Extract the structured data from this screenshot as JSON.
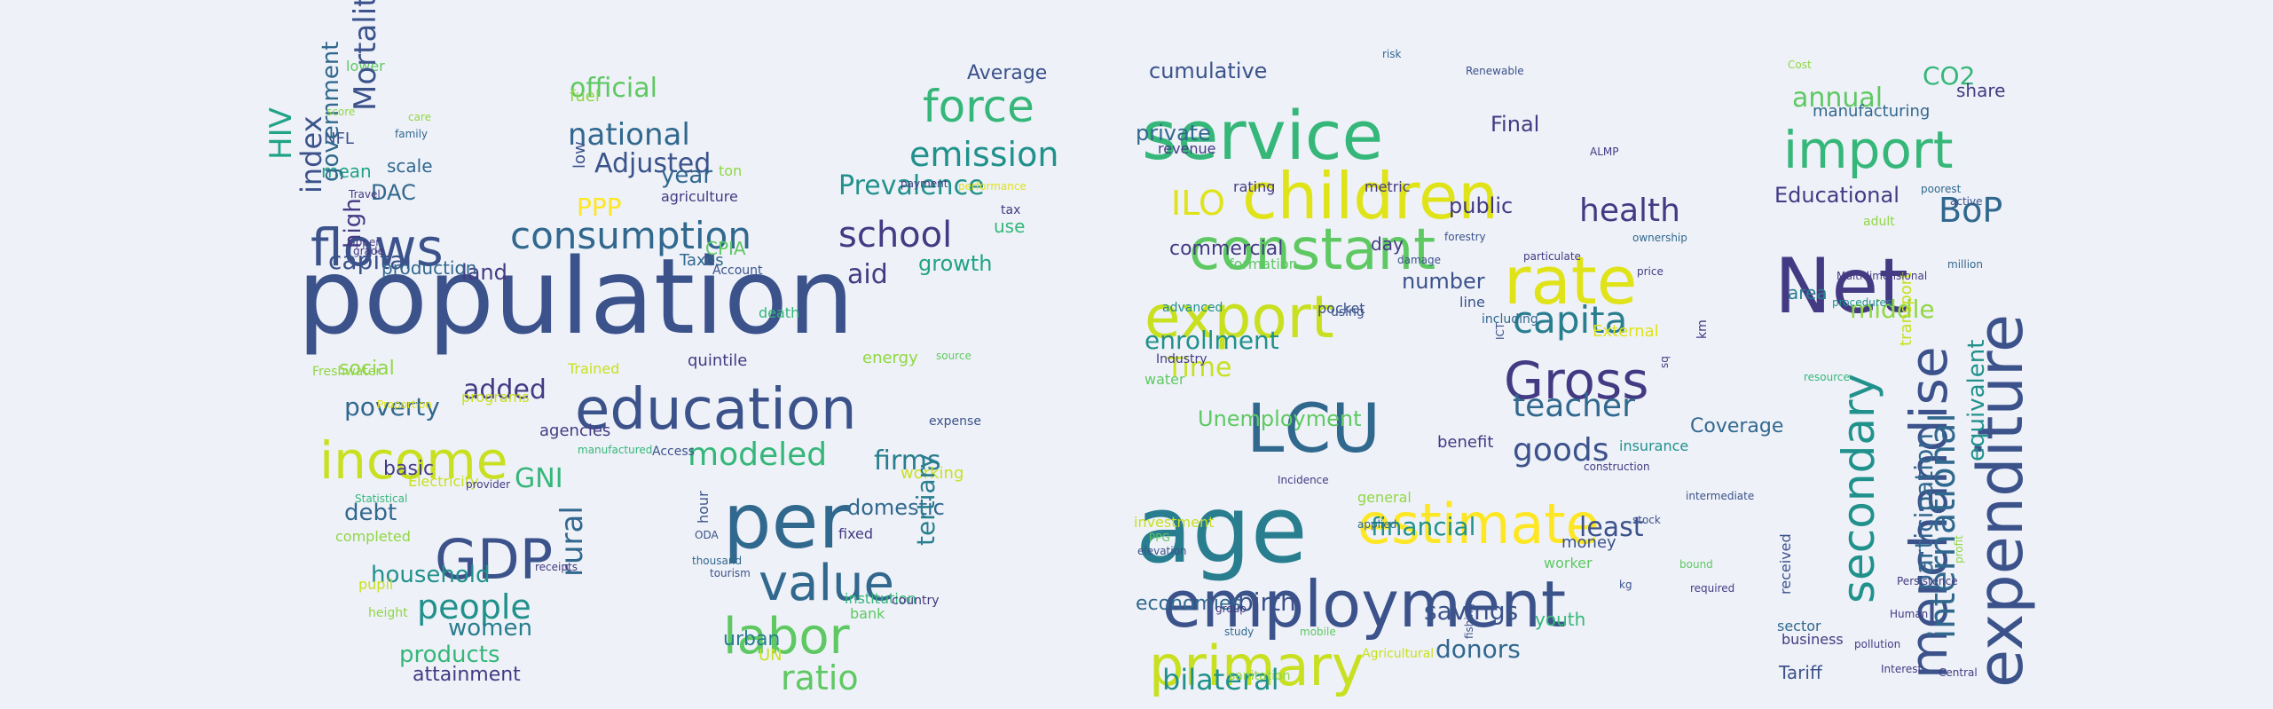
{
  "palette": [
    "#443a83",
    "#3b528b",
    "#31688e",
    "#287d8e",
    "#21918c",
    "#20a386",
    "#35b779",
    "#5ec962",
    "#90d743",
    "#c8e020",
    "#dfe318",
    "#fde725"
  ],
  "words": [
    {
      "t": "population",
      "c": "#3b528b"
    },
    {
      "t": "education",
      "c": "#3b528b"
    },
    {
      "t": "income",
      "c": "#c8e020"
    },
    {
      "t": "GDP",
      "c": "#3b528b"
    },
    {
      "t": "per",
      "c": "#31688e"
    },
    {
      "t": "flows",
      "c": "#3b528b"
    },
    {
      "t": "consumption",
      "c": "#31688e"
    },
    {
      "t": "force",
      "c": "#35b779"
    },
    {
      "t": "value",
      "c": "#31688e"
    },
    {
      "t": "labor",
      "c": "#5ec962"
    },
    {
      "t": "school",
      "c": "#443a83"
    },
    {
      "t": "emission",
      "c": "#21918c"
    },
    {
      "t": "national",
      "c": "#31688e"
    },
    {
      "t": "official",
      "c": "#5ec962"
    },
    {
      "t": "Prevalence",
      "c": "#21918c"
    },
    {
      "t": "modeled",
      "c": "#35b779"
    },
    {
      "t": "people",
      "c": "#21918c"
    },
    {
      "t": "Adjusted",
      "c": "#3b528b"
    },
    {
      "t": "capital",
      "c": "#3b528b"
    },
    {
      "t": "GNI",
      "c": "#35b779"
    },
    {
      "t": "firms",
      "c": "#287d8e"
    },
    {
      "t": "ratio",
      "c": "#5ec962"
    },
    {
      "t": "added",
      "c": "#443a83"
    },
    {
      "t": "aid",
      "c": "#443a83"
    },
    {
      "t": "poverty",
      "c": "#31688e"
    },
    {
      "t": "debt",
      "c": "#31688e"
    },
    {
      "t": "household",
      "c": "#21918c"
    },
    {
      "t": "women",
      "c": "#287d8e"
    },
    {
      "t": "products",
      "c": "#35b779"
    },
    {
      "t": "domestic",
      "c": "#31688e"
    },
    {
      "t": "growth",
      "c": "#20a386"
    },
    {
      "t": "year",
      "c": "#31688e"
    },
    {
      "t": "land",
      "c": "#443a83"
    },
    {
      "t": "PPP",
      "c": "#fde725"
    },
    {
      "t": "Average",
      "c": "#3b528b"
    },
    {
      "t": "social",
      "c": "#90d743"
    },
    {
      "t": "attainment",
      "c": "#443a83"
    },
    {
      "t": "urban",
      "c": "#287d8e"
    },
    {
      "t": "scale",
      "c": "#31688e"
    },
    {
      "t": "DAC",
      "c": "#31688e"
    },
    {
      "t": "basic",
      "c": "#443a83"
    },
    {
      "t": "mean",
      "c": "#20a386"
    },
    {
      "t": "production",
      "c": "#31688e"
    },
    {
      "t": "agencies",
      "c": "#443a83"
    },
    {
      "t": "quintile",
      "c": "#443a83"
    },
    {
      "t": "fixed",
      "c": "#443a83"
    },
    {
      "t": "bank",
      "c": "#5ec962"
    },
    {
      "t": "institution",
      "c": "#35b779"
    },
    {
      "t": "Taxes",
      "c": "#31688e"
    },
    {
      "t": "energy",
      "c": "#90d743"
    },
    {
      "t": "working",
      "c": "#c8e020"
    },
    {
      "t": "lower",
      "c": "#5ec962"
    },
    {
      "t": "fuel",
      "c": "#90d743"
    },
    {
      "t": "NFL",
      "c": "#3b528b"
    },
    {
      "t": "agriculture",
      "c": "#443a83"
    },
    {
      "t": "CPIA",
      "c": "#5ec962"
    },
    {
      "t": "death",
      "c": "#35b779"
    },
    {
      "t": "use",
      "c": "#35b779"
    },
    {
      "t": "ton",
      "c": "#90d743"
    },
    {
      "t": "tax",
      "c": "#443a83"
    },
    {
      "t": "expense",
      "c": "#3b528b"
    },
    {
      "t": "Electricity",
      "c": "#c8e020"
    },
    {
      "t": "completed",
      "c": "#90d743"
    },
    {
      "t": "pupil",
      "c": "#c8e020"
    },
    {
      "t": "height",
      "c": "#90d743"
    },
    {
      "t": "Trained",
      "c": "#c8e020"
    },
    {
      "t": "programs",
      "c": "#c8e020"
    },
    {
      "t": "Freshwater",
      "c": "#90d743"
    },
    {
      "t": "Account",
      "c": "#3b528b"
    },
    {
      "t": "UN",
      "c": "#c8e020"
    },
    {
      "t": "service",
      "c": "#35b779"
    },
    {
      "t": "children",
      "c": "#dfe318"
    },
    {
      "t": "constant",
      "c": "#5ec962"
    },
    {
      "t": "export",
      "c": "#c8e020"
    },
    {
      "t": "age",
      "c": "#287d8e"
    },
    {
      "t": "LCU",
      "c": "#31688e"
    },
    {
      "t": "rate",
      "c": "#dfe318"
    },
    {
      "t": "Gross",
      "c": "#443a83"
    },
    {
      "t": "employment",
      "c": "#3b528b"
    },
    {
      "t": "estimate",
      "c": "#fde725"
    },
    {
      "t": "primary",
      "c": "#c8e020"
    },
    {
      "t": "capita",
      "c": "#287d8e"
    },
    {
      "t": "teacher",
      "c": "#31688e"
    },
    {
      "t": "health",
      "c": "#443a83"
    },
    {
      "t": "enrollment",
      "c": "#21918c"
    },
    {
      "t": "goods",
      "c": "#3b528b"
    },
    {
      "t": "financial",
      "c": "#21918c"
    },
    {
      "t": "savings",
      "c": "#3b528b"
    },
    {
      "t": "least",
      "c": "#3b528b"
    },
    {
      "t": "ILO",
      "c": "#dfe318"
    },
    {
      "t": "Unemployment",
      "c": "#5ec962"
    },
    {
      "t": "Time",
      "c": "#c8e020"
    },
    {
      "t": "birth",
      "c": "#3b528b"
    },
    {
      "t": "donors",
      "c": "#31688e"
    },
    {
      "t": "bilateral",
      "c": "#21918c"
    },
    {
      "t": "economies",
      "c": "#31688e"
    },
    {
      "t": "cumulative",
      "c": "#3b528b"
    },
    {
      "t": "private",
      "c": "#31688e"
    },
    {
      "t": "commercial",
      "c": "#443a83"
    },
    {
      "t": "number",
      "c": "#3b528b"
    },
    {
      "t": "public",
      "c": "#443a83"
    },
    {
      "t": "Final",
      "c": "#443a83"
    },
    {
      "t": "Coverage",
      "c": "#31688e"
    },
    {
      "t": "External",
      "c": "#dfe318"
    },
    {
      "t": "day",
      "c": "#443a83"
    },
    {
      "t": "pocket",
      "c": "#3b528b"
    },
    {
      "t": "formation",
      "c": "#5ec962"
    },
    {
      "t": "benefit",
      "c": "#443a83"
    },
    {
      "t": "youth",
      "c": "#35b779"
    },
    {
      "t": "money",
      "c": "#3b528b"
    },
    {
      "t": "worker",
      "c": "#5ec962"
    },
    {
      "t": "insurance",
      "c": "#21918c"
    },
    {
      "t": "investment",
      "c": "#c8e020"
    },
    {
      "t": "general",
      "c": "#90d743"
    },
    {
      "t": "rating",
      "c": "#443a83"
    },
    {
      "t": "metric",
      "c": "#443a83"
    },
    {
      "t": "revenue",
      "c": "#443a83"
    },
    {
      "t": "advanced",
      "c": "#21918c"
    },
    {
      "t": "water",
      "c": "#5ec962"
    },
    {
      "t": "Industry",
      "c": "#443a83"
    },
    {
      "t": "Agricultural",
      "c": "#c8e020"
    },
    {
      "t": "sanitation",
      "c": "#90d743"
    },
    {
      "t": "line",
      "c": "#3b528b"
    },
    {
      "t": "using",
      "c": "#3b528b"
    },
    {
      "t": "including",
      "c": "#31688e"
    },
    {
      "t": "Net",
      "c": "#443a83"
    },
    {
      "t": "import",
      "c": "#35b779"
    },
    {
      "t": "expenditure",
      "c": "#3b528b"
    },
    {
      "t": "merchandise",
      "c": "#3b528b"
    },
    {
      "t": "secondary",
      "c": "#21918c"
    },
    {
      "t": "annual",
      "c": "#5ec962"
    },
    {
      "t": "BoP",
      "c": "#31688e"
    },
    {
      "t": "Educational",
      "c": "#443a83"
    },
    {
      "t": "international",
      "c": "#31688e"
    },
    {
      "t": "participation",
      "c": "#31688e"
    },
    {
      "t": "equivalent",
      "c": "#21918c"
    },
    {
      "t": "CO2",
      "c": "#35b779"
    },
    {
      "t": "share",
      "c": "#443a83"
    },
    {
      "t": "manufacturing",
      "c": "#31688e"
    },
    {
      "t": "middle",
      "c": "#90d743"
    },
    {
      "t": "area",
      "c": "#287d8e"
    },
    {
      "t": "Tariff",
      "c": "#3b528b"
    },
    {
      "t": "sector",
      "c": "#31688e"
    },
    {
      "t": "business",
      "c": "#443a83"
    },
    {
      "t": "transport",
      "c": "#c8e020"
    },
    {
      "t": "received",
      "c": "#3b528b"
    },
    {
      "t": "adult",
      "c": "#90d743"
    },
    {
      "t": "HIV",
      "c": "#20a386"
    },
    {
      "t": "index",
      "c": "#3b528b"
    },
    {
      "t": "government",
      "c": "#31688e"
    },
    {
      "t": "Mortality",
      "c": "#3b528b"
    },
    {
      "t": "high",
      "c": "#443a83"
    },
    {
      "t": "rural",
      "c": "#31688e"
    },
    {
      "t": "low",
      "c": "#3b528b"
    },
    {
      "t": "hour",
      "c": "#3b528b"
    },
    {
      "t": "tertiary",
      "c": "#287d8e"
    },
    {
      "t": "care",
      "c": "#90d743"
    },
    {
      "t": "family",
      "c": "#31688e"
    },
    {
      "t": "score",
      "c": "#90d743"
    },
    {
      "t": "Travel",
      "c": "#443a83"
    },
    {
      "t": "upper",
      "c": "#443a83"
    },
    {
      "t": "grade",
      "c": "#443a83"
    },
    {
      "t": "manufactured",
      "c": "#35b779"
    },
    {
      "t": "receipts",
      "c": "#443a83"
    },
    {
      "t": "thousand",
      "c": "#31688e"
    },
    {
      "t": "ODA",
      "c": "#3b528b"
    },
    {
      "t": "tourism",
      "c": "#3b528b"
    },
    {
      "t": "Access",
      "c": "#3b528b"
    },
    {
      "t": "country",
      "c": "#443a83"
    },
    {
      "t": "source",
      "c": "#5ec962"
    },
    {
      "t": "performance",
      "c": "#dfe318"
    },
    {
      "t": "payment",
      "c": "#443a83"
    },
    {
      "t": "Statistical",
      "c": "#35b779"
    },
    {
      "t": "provider",
      "c": "#443a83"
    },
    {
      "t": "Proportion",
      "c": "#dfe318"
    },
    {
      "t": "risk",
      "c": "#31688e"
    },
    {
      "t": "Renewable",
      "c": "#3b528b"
    },
    {
      "t": "ALMP",
      "c": "#443a83"
    },
    {
      "t": "price",
      "c": "#443a83"
    },
    {
      "t": "ownership",
      "c": "#31688e"
    },
    {
      "t": "construction",
      "c": "#443a83"
    },
    {
      "t": "kg",
      "c": "#3b528b"
    },
    {
      "t": "sq",
      "c": "#443a83"
    },
    {
      "t": "km",
      "c": "#443a83"
    },
    {
      "t": "stock",
      "c": "#3b528b"
    },
    {
      "t": "bound",
      "c": "#5ec962"
    },
    {
      "t": "PPG",
      "c": "#5ec962"
    },
    {
      "t": "elevation",
      "c": "#3b528b"
    },
    {
      "t": "mobile",
      "c": "#5ec962"
    },
    {
      "t": "study",
      "c": "#31688e"
    },
    {
      "t": "group",
      "c": "#443a83"
    },
    {
      "t": "Incidence",
      "c": "#443a83"
    },
    {
      "t": "damage",
      "c": "#3b528b"
    },
    {
      "t": "forestry",
      "c": "#3b528b"
    },
    {
      "t": "particulate",
      "c": "#443a83"
    },
    {
      "t": "intermediate",
      "c": "#3b528b"
    },
    {
      "t": "required",
      "c": "#443a83"
    },
    {
      "t": "applied",
      "c": "#31688e"
    },
    {
      "t": "fishing",
      "c": "#3b528b"
    },
    {
      "t": "ICT",
      "c": "#3b528b"
    },
    {
      "t": "Multidimensional",
      "c": "#443a83"
    },
    {
      "t": "procedures",
      "c": "#21918c"
    },
    {
      "t": "resource",
      "c": "#35b779"
    },
    {
      "t": "Persistence",
      "c": "#443a83"
    },
    {
      "t": "Human",
      "c": "#443a83"
    },
    {
      "t": "profit",
      "c": "#90d743"
    },
    {
      "t": "Cost",
      "c": "#90d743"
    },
    {
      "t": "poorest",
      "c": "#31688e"
    },
    {
      "t": "million",
      "c": "#31688e"
    },
    {
      "t": "active",
      "c": "#3b528b"
    },
    {
      "t": "pollution",
      "c": "#443a83"
    },
    {
      "t": "Interest",
      "c": "#443a83"
    },
    {
      "t": "Central",
      "c": "#443a83"
    },
    {
      "t": "managed",
      "c": "#3b528b"
    },
    {
      "t": "Foreign",
      "c": "#5ec962"
    }
  ]
}
